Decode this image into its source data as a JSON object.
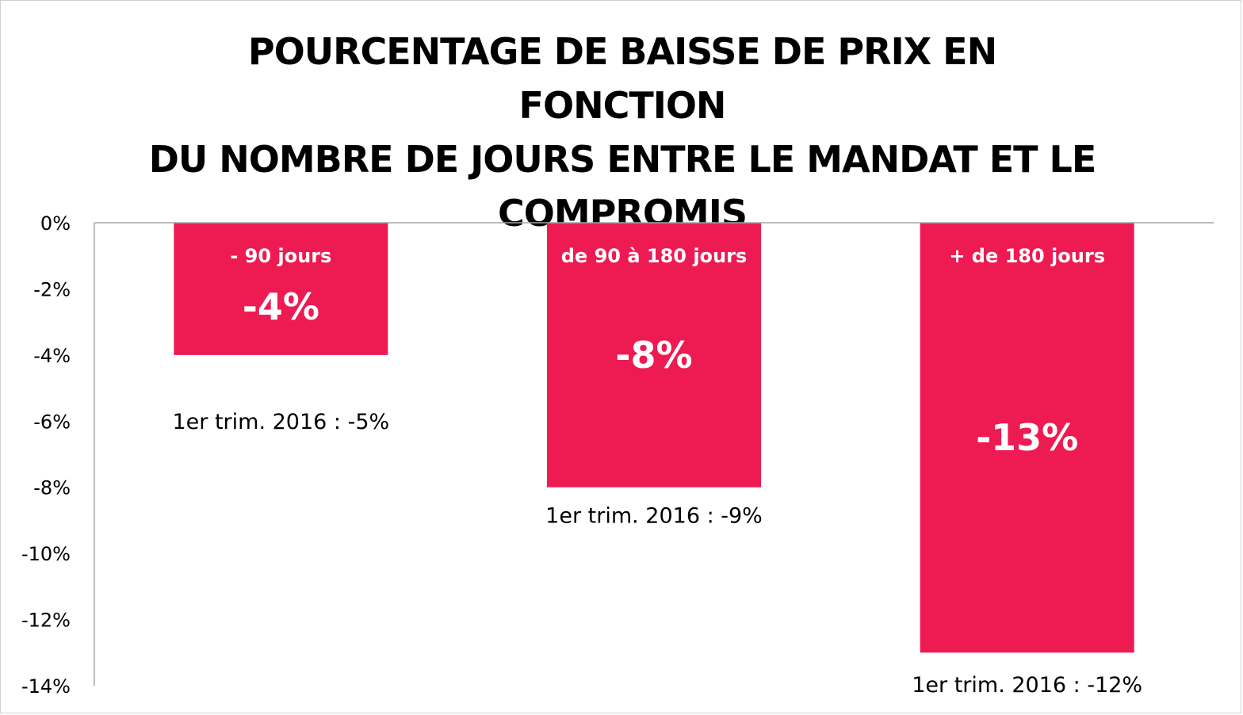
{
  "title_lines": [
    "POURCENTAGE DE BAISSE DE PRIX EN FONCTION",
    "DU NOMBRE DE JOURS ENTRE LE MANDAT ET LE",
    "COMPROMIS"
  ],
  "colors": {
    "bar": "#ee1a52",
    "axis": "#a6a6a6"
  },
  "chart_data": {
    "type": "bar",
    "title": "POURCENTAGE DE BAISSE DE PRIX EN FONCTION DU NOMBRE DE JOURS ENTRE LE MANDAT ET LE COMPROMIS",
    "categories": [
      "- 90 jours",
      "de 90 à 180 jours",
      "+ de 180 jours"
    ],
    "values": [
      -4,
      -8,
      -13
    ],
    "value_labels": [
      "-4%",
      "-8%",
      "-13%"
    ],
    "annotations": [
      "1er trim. 2016 : -5%",
      "1er trim. 2016 : -9%",
      "1er trim. 2016 : -12%"
    ],
    "ylim": [
      -14,
      0
    ],
    "yticks": [
      0,
      -2,
      -4,
      -6,
      -8,
      -10,
      -12,
      -14
    ],
    "ytick_labels": [
      "0%",
      "-2%",
      "-4%",
      "-6%",
      "-8%",
      "-10%",
      "-12%",
      "-14%"
    ],
    "grid": false,
    "legend": "none"
  }
}
